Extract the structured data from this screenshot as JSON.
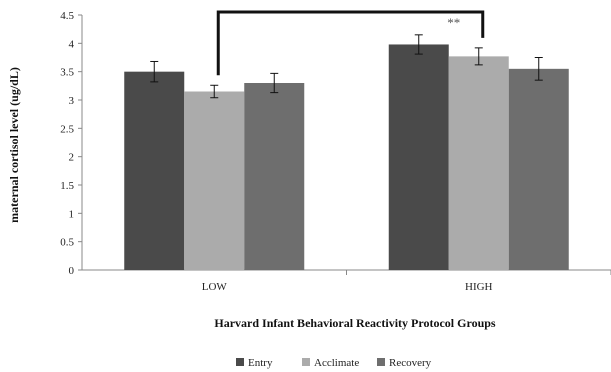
{
  "chart_data": {
    "type": "bar",
    "title": "",
    "xlabel": "Harvard Infant Behavioral Reactivity Protocol Groups",
    "ylabel": "maternal cortisol level (ug/dL)",
    "ylim": [
      0,
      4.5
    ],
    "yticks": [
      "0",
      "0.5",
      "1",
      "1.5",
      "2",
      "2.5",
      "3",
      "3.5",
      "4",
      "4.5"
    ],
    "categories": [
      "LOW",
      "HIGH"
    ],
    "series": [
      {
        "name": "Entry",
        "color": "#4a4a4a",
        "values": [
          3.5,
          3.98
        ],
        "errors": [
          0.18,
          0.17
        ]
      },
      {
        "name": "Acclimate",
        "color": "#ababab",
        "values": [
          3.15,
          3.77
        ],
        "errors": [
          0.11,
          0.15
        ]
      },
      {
        "name": "Recovery",
        "color": "#6e6e6e",
        "values": [
          3.3,
          3.55
        ],
        "errors": [
          0.17,
          0.2
        ]
      }
    ],
    "significance": {
      "label": "**",
      "from_category": "LOW",
      "to_category": "HIGH",
      "series": "Acclimate"
    },
    "grid": false,
    "legend_position": "bottom"
  }
}
